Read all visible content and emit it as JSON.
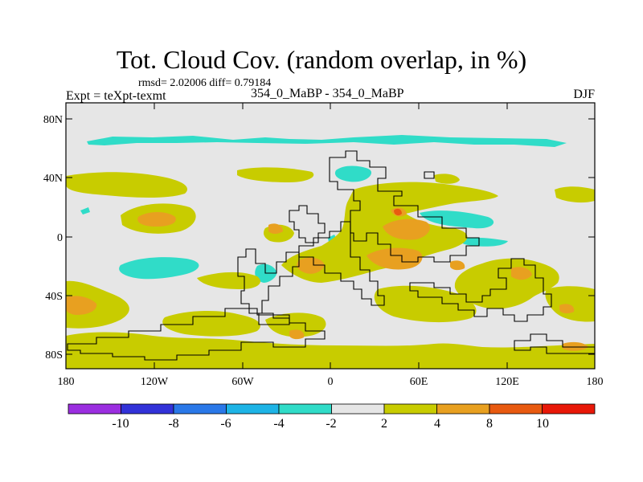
{
  "header": {
    "title": "Tot. Cloud Cov. (random overlap, in %)",
    "stats": "rmsd= 2.02006 diff= 0.79184",
    "experiment": "Expt = teXpt-texmt",
    "cases": "354_0_MaBP - 354_0_MaBP",
    "season": "DJF"
  },
  "map": {
    "background_color": "#e6e6e6",
    "lat_ticks": [
      "80N",
      "40N",
      "0",
      "40S",
      "80S"
    ],
    "lon_ticks": [
      "180",
      "120W",
      "60W",
      "0",
      "60E",
      "120E",
      "180"
    ]
  },
  "colorbar": {
    "colors": [
      "#9b2ee0",
      "#3232d8",
      "#2a78e8",
      "#1eb4e6",
      "#30dcc8",
      "#e6e6e6",
      "#c8cc00",
      "#e8a020",
      "#e85a10",
      "#e81808"
    ],
    "labels": [
      "-10",
      "-8",
      "-6",
      "-4",
      "-2",
      "2",
      "4",
      "8",
      "10"
    ]
  }
}
